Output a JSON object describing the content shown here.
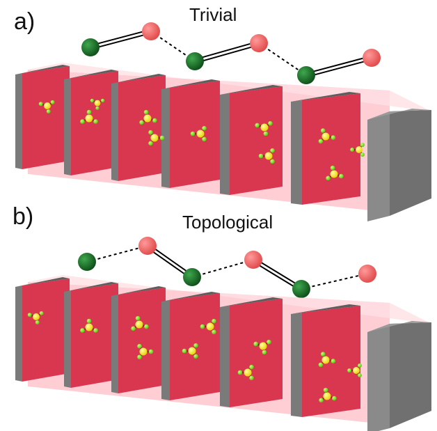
{
  "panels": [
    {
      "letter": "a)",
      "title": "Trivial",
      "bond_pattern": [
        "double",
        "dashed",
        "double",
        "dashed",
        "double"
      ]
    },
    {
      "letter": "b)",
      "title": "Topological",
      "bond_pattern": [
        "dashed",
        "double",
        "dashed",
        "double",
        "dashed"
      ]
    }
  ],
  "colors": {
    "atom_a": "#1b6f2a",
    "atom_b": "#f26b6b",
    "channel_fill": "#ffc9cf",
    "barrier_face": "#d9364f",
    "barrier_edge": "#7a7a7a",
    "molecule_center": "#ffee00",
    "molecule_ligand": "#7ee02a",
    "molecule_bond": "#8b1a1a"
  }
}
